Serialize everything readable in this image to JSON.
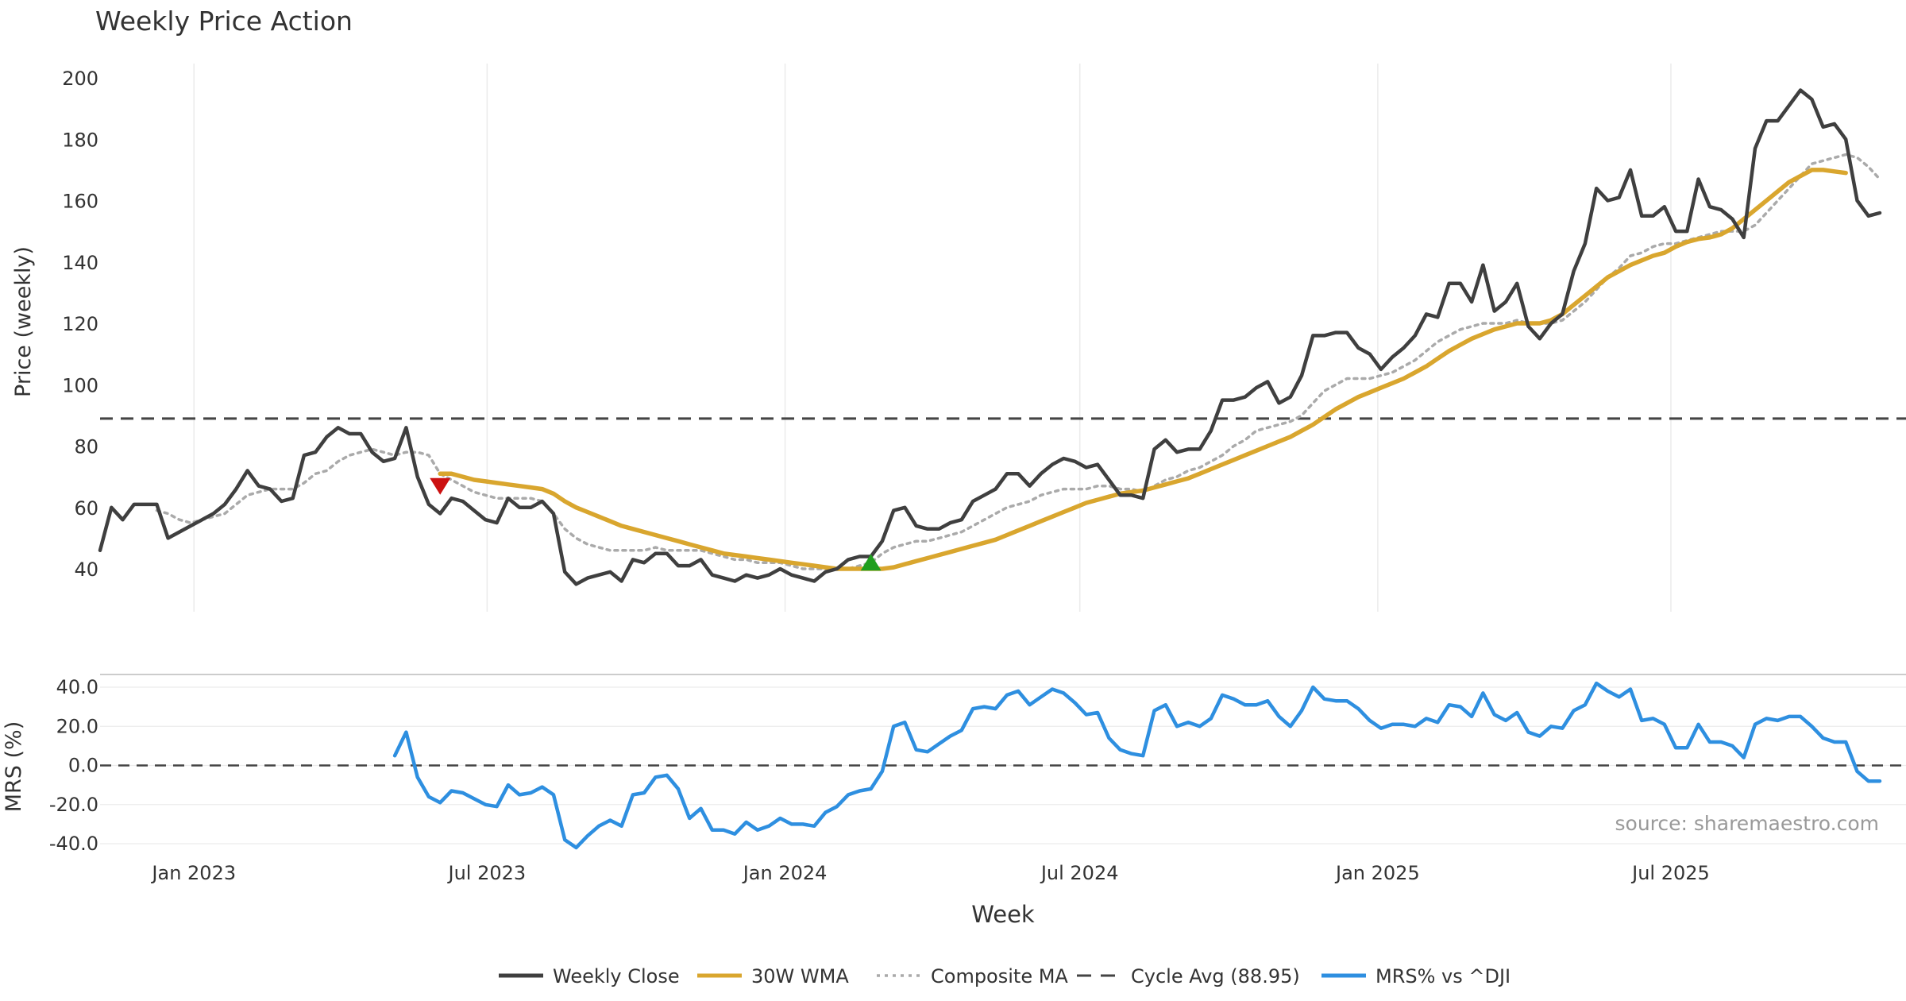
{
  "chart_data": [
    {
      "type": "line",
      "title": "Weekly Price Action",
      "ylabel": "Price (weekly)",
      "ylim": [
        25,
        210
      ],
      "yticks": [
        40,
        60,
        80,
        100,
        120,
        140,
        160,
        180,
        200
      ],
      "grid": "vertical",
      "x_start": "2022-11-04",
      "x_step_days": 7,
      "series": [
        {
          "name": "Weekly Close",
          "color": "#3f3f3f",
          "style": "solid",
          "values": [
            46,
            60,
            56,
            61,
            61,
            61,
            50,
            52,
            54,
            56,
            58,
            61,
            66,
            72,
            67,
            66,
            62,
            63,
            77,
            78,
            83,
            86,
            84,
            84,
            78,
            75,
            76,
            86,
            70,
            61,
            58,
            63,
            62,
            59,
            56,
            55,
            63,
            60,
            60,
            62,
            58,
            39,
            35,
            37,
            38,
            39,
            36,
            43,
            42,
            45,
            45,
            41,
            41,
            43,
            38,
            37,
            36,
            38,
            37,
            38,
            40,
            38,
            37,
            36,
            39,
            40,
            43,
            44,
            44,
            49,
            59,
            60,
            54,
            53,
            53,
            55,
            56,
            62,
            64,
            66,
            71,
            71,
            67,
            71,
            74,
            76,
            75,
            73,
            74,
            69,
            64,
            64,
            63,
            79,
            82,
            78,
            79,
            79,
            85,
            95,
            95,
            96,
            99,
            101,
            94,
            96,
            103,
            116,
            116,
            117,
            117,
            112,
            110,
            105,
            109,
            112,
            116,
            123,
            122,
            133,
            133,
            127,
            139,
            124,
            127,
            133,
            119,
            115,
            120,
            123,
            137,
            146,
            164,
            160,
            161,
            170,
            155,
            155,
            158,
            150,
            150,
            167,
            158,
            157,
            154,
            148,
            177,
            186,
            186,
            191,
            196,
            193,
            184,
            185,
            180,
            160,
            155,
            156
          ]
        },
        {
          "name": "30W WMA",
          "color": "#d9a62e",
          "style": "solid",
          "values": [
            null,
            null,
            null,
            null,
            null,
            null,
            null,
            null,
            null,
            null,
            null,
            null,
            null,
            null,
            null,
            null,
            null,
            null,
            null,
            null,
            null,
            null,
            null,
            null,
            null,
            null,
            null,
            null,
            null,
            null,
            71,
            71,
            70,
            69,
            68.5,
            68,
            67.5,
            67,
            66.5,
            66,
            64.5,
            62,
            60,
            58.5,
            57,
            55.5,
            54,
            53,
            52,
            51,
            50,
            49,
            48,
            47,
            46,
            45,
            44.5,
            44,
            43.5,
            43,
            42.5,
            42,
            41.5,
            41,
            40.5,
            40,
            40,
            40,
            40,
            40,
            40.5,
            41.5,
            42.5,
            43.5,
            44.5,
            45.5,
            46.5,
            47.5,
            48.5,
            49.5,
            51,
            52.5,
            54,
            55.5,
            57,
            58.5,
            60,
            61.5,
            62.5,
            63.5,
            64.5,
            65,
            65.5,
            66.5,
            67.5,
            68.5,
            69.5,
            71,
            72.5,
            74,
            75.5,
            77,
            78.5,
            80,
            81.5,
            83,
            85,
            87,
            89.5,
            92,
            94,
            96,
            97.5,
            99,
            100.5,
            102,
            104,
            106,
            108.5,
            111,
            113,
            115,
            116.5,
            118,
            119,
            120,
            120,
            120,
            121,
            123,
            126,
            129,
            132,
            135,
            137,
            139,
            140.5,
            142,
            143,
            145,
            146.5,
            147.5,
            148,
            149,
            151,
            154,
            157,
            160,
            163,
            166,
            168,
            170,
            170,
            169.5,
            169
          ]
        },
        {
          "name": "Composite MA",
          "color": "#aaaaaa",
          "style": "dotted",
          "values": [
            null,
            null,
            null,
            null,
            null,
            59,
            58,
            56,
            55,
            56,
            57,
            58,
            61,
            64,
            65,
            66,
            66,
            66,
            68,
            71,
            72,
            75,
            77,
            78,
            79,
            78,
            77,
            78,
            78,
            77,
            71,
            69,
            67,
            65,
            64,
            63,
            63,
            63,
            63,
            62,
            58,
            53,
            50,
            48,
            47,
            46,
            46,
            46,
            46,
            47,
            46,
            46,
            46,
            46,
            45,
            44,
            43,
            43,
            42,
            42,
            42,
            41,
            40,
            40,
            40,
            40,
            40,
            41,
            42,
            45,
            47,
            48,
            49,
            49,
            50,
            51,
            52,
            54,
            56,
            58,
            60,
            61,
            62,
            64,
            65,
            66,
            66,
            66,
            67,
            67,
            66,
            66,
            65,
            67,
            69,
            70,
            72,
            73,
            75,
            77,
            80,
            82,
            85,
            86,
            87,
            88,
            90,
            94,
            98,
            100,
            102,
            102,
            102,
            103,
            104,
            106,
            108,
            111,
            114,
            116,
            118,
            119,
            120,
            120,
            120,
            121,
            120,
            120,
            120,
            121,
            124,
            127,
            131,
            135,
            138,
            142,
            143,
            145,
            146,
            146,
            147,
            148,
            149,
            150,
            150,
            150,
            152,
            156,
            160,
            164,
            168,
            172,
            173,
            174,
            175,
            174,
            171,
            167
          ]
        },
        {
          "name": "Cycle Avg (88.95)",
          "color": "#444444",
          "style": "dashed",
          "constant": 88.95
        }
      ],
      "markers": [
        {
          "type": "sell",
          "x_index": 30,
          "y": 67,
          "color": "#cc1111"
        },
        {
          "type": "buy",
          "x_index": 68,
          "y": 42,
          "color": "#1f9e1f"
        }
      ]
    },
    {
      "type": "line",
      "ylabel": "MRS (%)",
      "ylim": [
        -45,
        46
      ],
      "yticks": [
        "40.0",
        "20.0",
        "0.0",
        "-20.0",
        "-40.0"
      ],
      "reference_line": 0,
      "xlabel": "Week",
      "xtick_labels": [
        "Jan 2023",
        "Jul 2023",
        "Jan 2024",
        "Jul 2024",
        "Jan 2025",
        "Jul 2025"
      ],
      "xtick_dates": [
        "2023-01-01",
        "2023-07-01",
        "2024-01-01",
        "2024-07-01",
        "2025-01-01",
        "2025-07-01"
      ],
      "series": [
        {
          "name": "MRS% vs ^DJI",
          "color": "#2e8fe0",
          "style": "solid",
          "values": [
            null,
            null,
            null,
            null,
            null,
            null,
            null,
            null,
            null,
            null,
            null,
            null,
            null,
            null,
            null,
            null,
            null,
            null,
            null,
            null,
            null,
            null,
            null,
            null,
            null,
            null,
            null,
            null,
            null,
            null,
            null,
            null,
            null,
            null,
            null,
            null,
            null,
            null,
            null,
            null,
            null,
            null,
            null,
            null,
            null,
            null,
            null,
            null,
            null,
            null,
            null,
            null,
            null,
            null,
            null,
            null,
            null,
            null,
            null,
            null,
            null,
            null,
            null,
            null,
            null,
            null,
            null,
            null,
            null,
            null,
            null,
            null,
            null,
            null,
            null,
            null,
            null,
            null,
            null,
            null,
            null,
            null,
            null,
            null,
            null,
            null,
            null,
            null,
            null,
            null,
            null,
            null,
            null,
            null,
            null,
            null,
            null,
            null,
            null,
            null,
            null,
            null,
            null,
            null,
            null,
            null,
            null,
            null,
            null,
            null,
            null,
            null,
            null,
            null,
            null,
            null,
            null,
            null,
            null,
            null,
            null,
            null,
            null,
            null,
            null,
            null,
            null,
            null,
            null,
            null,
            null,
            null,
            null,
            null,
            null,
            null,
            null,
            null,
            null,
            null,
            null,
            null,
            null,
            null,
            null,
            null,
            null,
            null,
            null,
            null,
            null,
            null,
            null,
            null,
            null,
            null,
            null,
            null,
            null,
            null
          ],
          "values_from_index": 26,
          "values_dense": [
            5,
            17,
            -6,
            -16,
            -19,
            -13,
            -14,
            -17,
            -20,
            -21,
            -10,
            -15,
            -14,
            -11,
            -15,
            -38,
            -42,
            -36,
            -31,
            -28,
            -31,
            -15,
            -14,
            -6,
            -5,
            -12,
            -27,
            -22,
            -33,
            -33,
            -35,
            -29,
            -33,
            -31,
            -27,
            -30,
            -30,
            -31,
            -24,
            -21,
            -15,
            -13,
            -12,
            -3,
            20,
            22,
            8,
            7,
            11,
            15,
            18,
            29,
            30,
            29,
            36,
            38,
            31,
            35,
            39,
            37,
            32,
            26,
            27,
            14,
            8,
            6,
            5,
            28,
            31,
            20,
            22,
            20,
            24,
            36,
            34,
            31,
            31,
            33,
            25,
            20,
            28,
            40,
            34,
            33,
            33,
            29,
            23,
            19,
            21,
            21,
            20,
            24,
            22,
            31,
            30,
            25,
            37,
            26,
            23,
            27,
            17,
            15,
            20,
            19,
            28,
            31,
            42,
            38,
            35,
            39,
            23,
            24,
            21,
            9,
            9,
            21,
            12,
            12,
            10,
            4,
            21,
            24,
            23,
            25,
            25,
            20,
            14,
            12,
            12,
            -3,
            -8,
            -8
          ]
        }
      ],
      "watermark": "source: sharemaestro.com"
    }
  ],
  "legend": {
    "placement": "bottom-center",
    "items": [
      {
        "label": "Weekly Close",
        "color": "#3f3f3f",
        "style": "solid"
      },
      {
        "label": "30W WMA",
        "color": "#d9a62e",
        "style": "solid"
      },
      {
        "label": "Composite MA",
        "color": "#aaaaaa",
        "style": "dotted"
      },
      {
        "label": "Cycle Avg (88.95)",
        "color": "#444444",
        "style": "dashed"
      },
      {
        "label": "MRS% vs ^DJI",
        "color": "#2e8fe0",
        "style": "solid"
      }
    ]
  }
}
